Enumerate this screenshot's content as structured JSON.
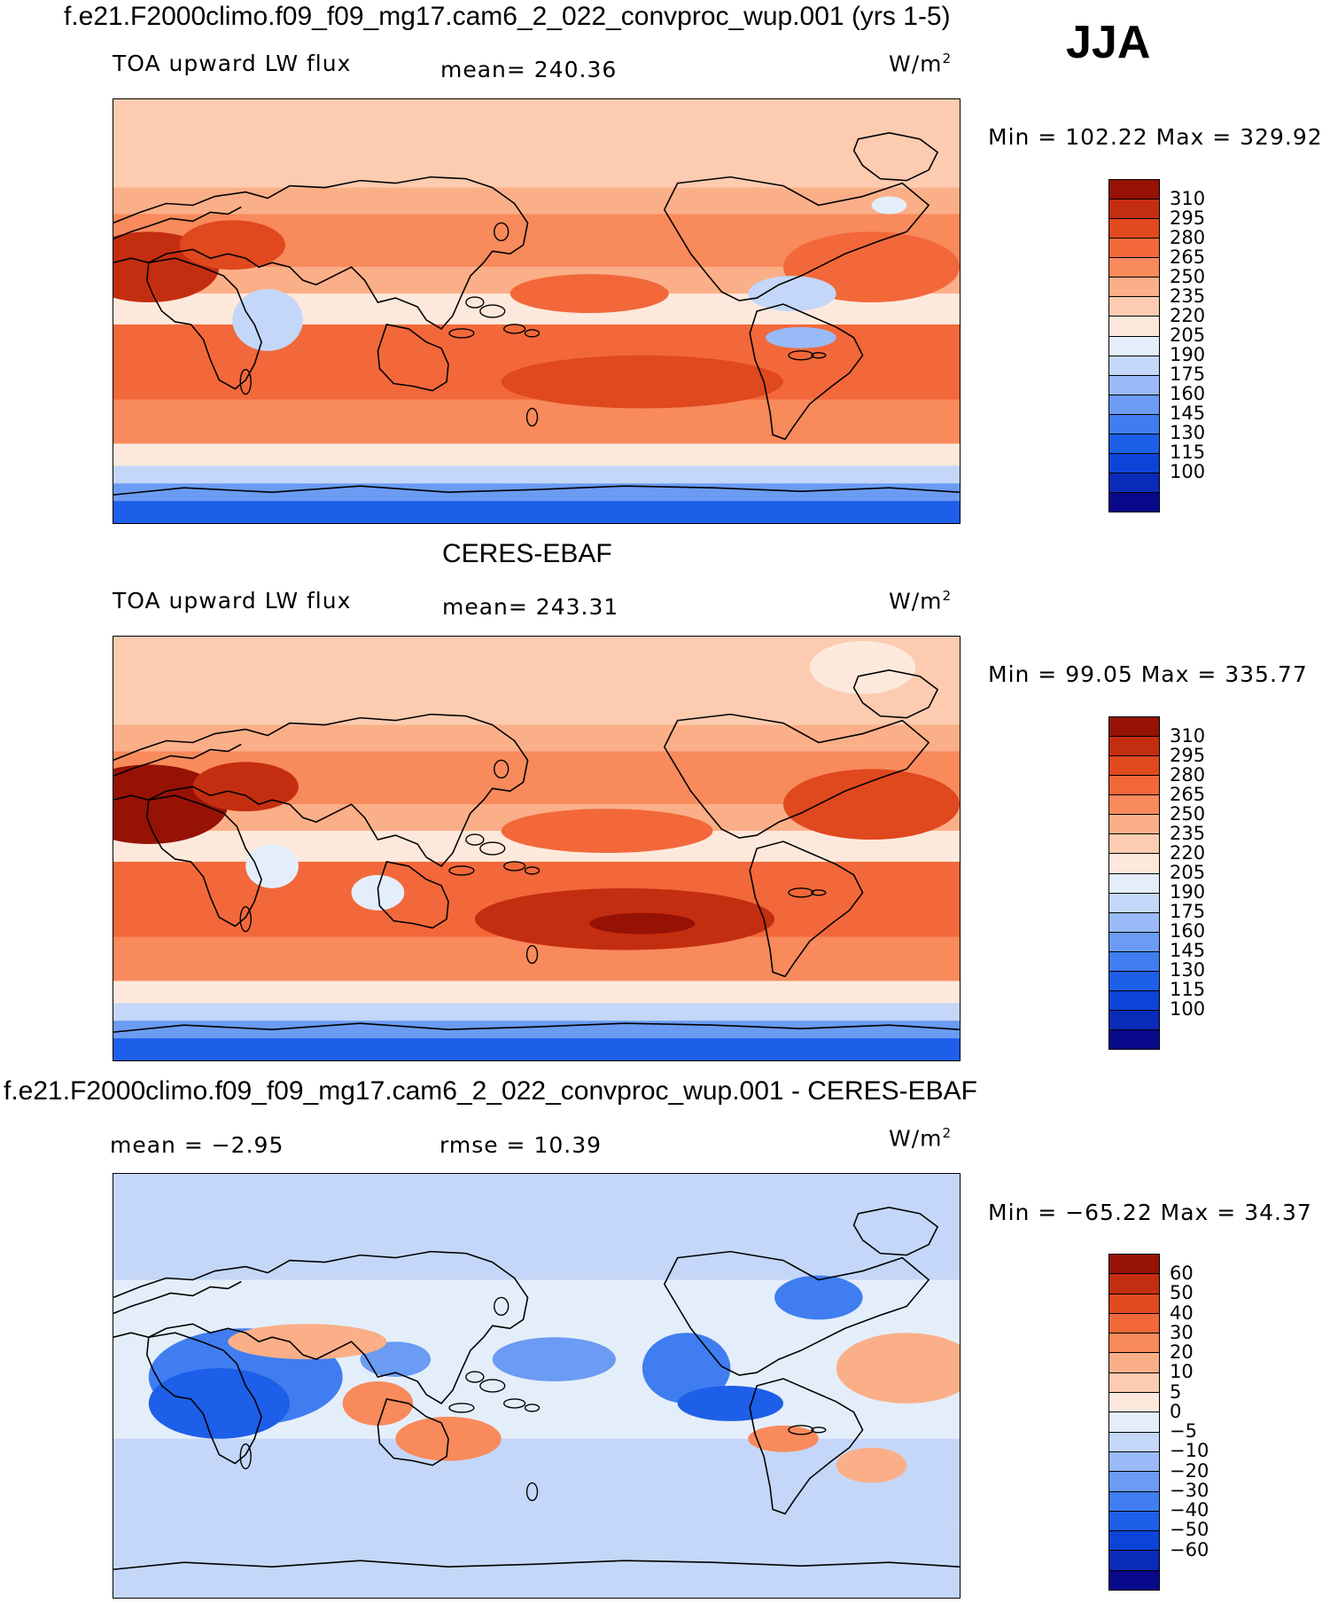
{
  "season": "JJA",
  "colors": {
    "abs_scale": [
      "#08088a",
      "#0a2bb8",
      "#0c44d8",
      "#1d5fe8",
      "#3f7df0",
      "#6b9bf3",
      "#99baf6",
      "#c4d7f8",
      "#e4eefa",
      "#fde9dc",
      "#fccbb0",
      "#fbaf88",
      "#f88a5c",
      "#f2683a",
      "#e0481e",
      "#c42e10",
      "#961205"
    ],
    "diff_scale": [
      "#08088a",
      "#0a2bb8",
      "#0c44d8",
      "#1d5fe8",
      "#3f7df0",
      "#6b9bf3",
      "#99baf6",
      "#c4d7f8",
      "#e4eefa",
      "#fde9dc",
      "#fccbb0",
      "#fbaf88",
      "#f88a5c",
      "#f2683a",
      "#e0481e",
      "#c42e10",
      "#961205"
    ]
  },
  "panels": [
    {
      "header": "f.e21.F2000climo.f09_f09_mg17.cam6_2_022_convproc_wup.001 (yrs 1-5)",
      "variable": "TOA upward LW flux",
      "mean_text": "mean= 240.36",
      "units": "W/m",
      "units_exp": "2",
      "minmax": "Min =  102.22 Max =  329.92",
      "colorbar_labels": [
        "310",
        "295",
        "280",
        "265",
        "250",
        "235",
        "220",
        "205",
        "190",
        "175",
        "160",
        "145",
        "130",
        "115",
        "100"
      ],
      "map_kind": "model"
    },
    {
      "header": "CERES-EBAF",
      "variable": "TOA upward LW flux",
      "mean_text": "mean= 243.31",
      "units": "W/m",
      "units_exp": "2",
      "minmax": "Min =   99.05 Max =  335.77",
      "colorbar_labels": [
        "310",
        "295",
        "280",
        "265",
        "250",
        "235",
        "220",
        "205",
        "190",
        "175",
        "160",
        "145",
        "130",
        "115",
        "100"
      ],
      "map_kind": "obs"
    },
    {
      "header": "f.e21.F2000climo.f09_f09_mg17.cam6_2_022_convproc_wup.001 - CERES-EBAF",
      "mean_text": "mean =   −2.95",
      "rmse_text": "rmse =   10.39",
      "units": "W/m",
      "units_exp": "2",
      "minmax": "Min = −65.22 Max =   34.37",
      "colorbar_labels": [
        "60",
        "50",
        "40",
        "30",
        "20",
        "10",
        "5",
        "0",
        "−5",
        "−10",
        "−20",
        "−30",
        "−40",
        "−50",
        "−60"
      ],
      "map_kind": "diff"
    }
  ]
}
